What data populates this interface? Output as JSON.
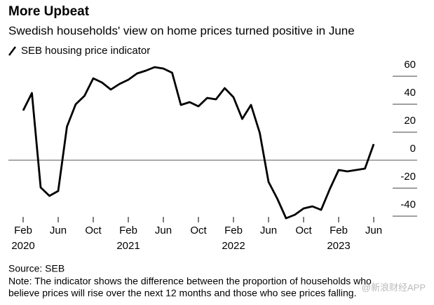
{
  "chart_data": {
    "type": "line",
    "title": "More Upbeat",
    "subtitle": "Swedish households' view on home prices turned positive in June",
    "x": [
      "2020-02",
      "2020-03",
      "2020-04",
      "2020-05",
      "2020-06",
      "2020-07",
      "2020-08",
      "2020-09",
      "2020-10",
      "2020-11",
      "2020-12",
      "2021-01",
      "2021-02",
      "2021-03",
      "2021-04",
      "2021-05",
      "2021-06",
      "2021-07",
      "2021-08",
      "2021-09",
      "2021-10",
      "2021-11",
      "2021-12",
      "2022-01",
      "2022-02",
      "2022-03",
      "2022-04",
      "2022-05",
      "2022-06",
      "2022-07",
      "2022-08",
      "2022-09",
      "2022-10",
      "2022-11",
      "2022-12",
      "2023-01",
      "2023-02",
      "2023-03",
      "2023-04",
      "2023-05",
      "2023-06"
    ],
    "series": [
      {
        "name": "SEB housing price indicator",
        "color": "#000000",
        "values": [
          35.5,
          48,
          -19.5,
          -25.5,
          -22,
          24,
          40,
          46,
          58.5,
          55.5,
          50.5,
          54.5,
          57.5,
          62,
          64,
          66.5,
          65.5,
          62.5,
          39.5,
          41.5,
          38.5,
          44.5,
          43.5,
          51.5,
          45,
          29.5,
          39.5,
          19.5,
          -15.5,
          -27.5,
          -41.5,
          -39,
          -34.5,
          -33,
          -35.5,
          -20.5,
          -7,
          -8,
          -7,
          -6,
          11.5
        ]
      }
    ],
    "ylim": [
      -40,
      67
    ],
    "yticks": [
      60,
      40,
      20,
      0,
      -20,
      -40
    ],
    "xticks": [
      {
        "value": "2020-02",
        "label": "Feb"
      },
      {
        "value": "2020-06",
        "label": "Jun"
      },
      {
        "value": "2020-10",
        "label": "Oct"
      },
      {
        "value": "2021-02",
        "label": "Feb"
      },
      {
        "value": "2021-06",
        "label": "Jun"
      },
      {
        "value": "2021-10",
        "label": "Oct"
      },
      {
        "value": "2022-02",
        "label": "Feb"
      },
      {
        "value": "2022-06",
        "label": "Jun"
      },
      {
        "value": "2022-10",
        "label": "Oct"
      },
      {
        "value": "2023-02",
        "label": "Feb"
      },
      {
        "value": "2023-06",
        "label": "Jun"
      }
    ],
    "xtick_years": [
      {
        "value": "2020-02",
        "label": "2020"
      },
      {
        "value": "2021-02",
        "label": "2021"
      },
      {
        "value": "2022-02",
        "label": "2022"
      },
      {
        "value": "2023-02",
        "label": "2023"
      }
    ],
    "source": "Source: SEB",
    "note_lines": [
      "Note: The indicator shows the difference between the proportion of households who",
      "believe prices will rise over the next 12 months and those who see prices falling."
    ],
    "watermark": "@新浪财经APP"
  }
}
